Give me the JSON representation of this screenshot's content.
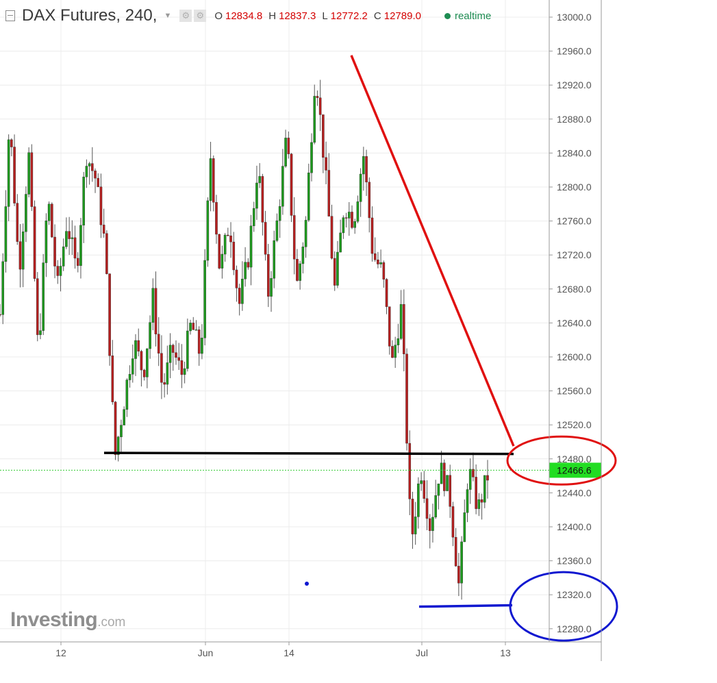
{
  "header": {
    "title": "DAX Futures, 240,",
    "open_key": "O",
    "open_val": "12834.8",
    "high_key": "H",
    "high_val": "12837.3",
    "low_key": "L",
    "low_val": "12772.2",
    "close_key": "C",
    "close_val": "12789.0",
    "realtime_label": "realtime"
  },
  "logo": {
    "main": "Investing",
    "suffix": ".com"
  },
  "colors": {
    "up": "#1e9a1e",
    "down": "#b52020",
    "wick": "#555555",
    "price_line": "#33cc33",
    "price_tag_bg": "#22dd22",
    "annot_red": "#e01010",
    "annot_blue": "#1018d0",
    "annot_black": "#000000"
  },
  "chart_data": {
    "type": "candlestick",
    "title": "DAX Futures, 240,",
    "ylim": [
      12270,
      13010
    ],
    "y_ticks": [
      "13000.0",
      "12960.0",
      "12920.0",
      "12880.0",
      "12840.0",
      "12800.0",
      "12760.0",
      "12720.0",
      "12680.0",
      "12640.0",
      "12600.0",
      "12560.0",
      "12520.0",
      "12480.0",
      "12440.0",
      "12400.0",
      "12360.0",
      "12320.0",
      "12280.0"
    ],
    "x_ticks": [
      "12",
      "Jun",
      "14",
      "Jul",
      "13"
    ],
    "last_price": "12466.6",
    "ohlc_path": [
      12650,
      12880,
      12700,
      12840,
      12600,
      12790,
      12680,
      12760,
      12700,
      12840,
      12810,
      12730,
      12480,
      12550,
      12620,
      12580,
      12670,
      12560,
      12610,
      12580,
      12640,
      12600,
      12840,
      12700,
      12760,
      12660,
      12720,
      12830,
      12670,
      12760,
      12860,
      12680,
      12760,
      12940,
      12820,
      12680,
      12780,
      12760,
      12840,
      12720,
      12700,
      12590,
      12660,
      12380,
      12470,
      12400,
      12470,
      12440,
      12330,
      12470,
      12420,
      12460
    ],
    "annotations": {
      "support_level": 12487,
      "low_level": 12306,
      "trendline_start": 12955,
      "trendline_end": 12487,
      "resistance_zone_center": 12478,
      "low_zone_center": 12308
    }
  }
}
